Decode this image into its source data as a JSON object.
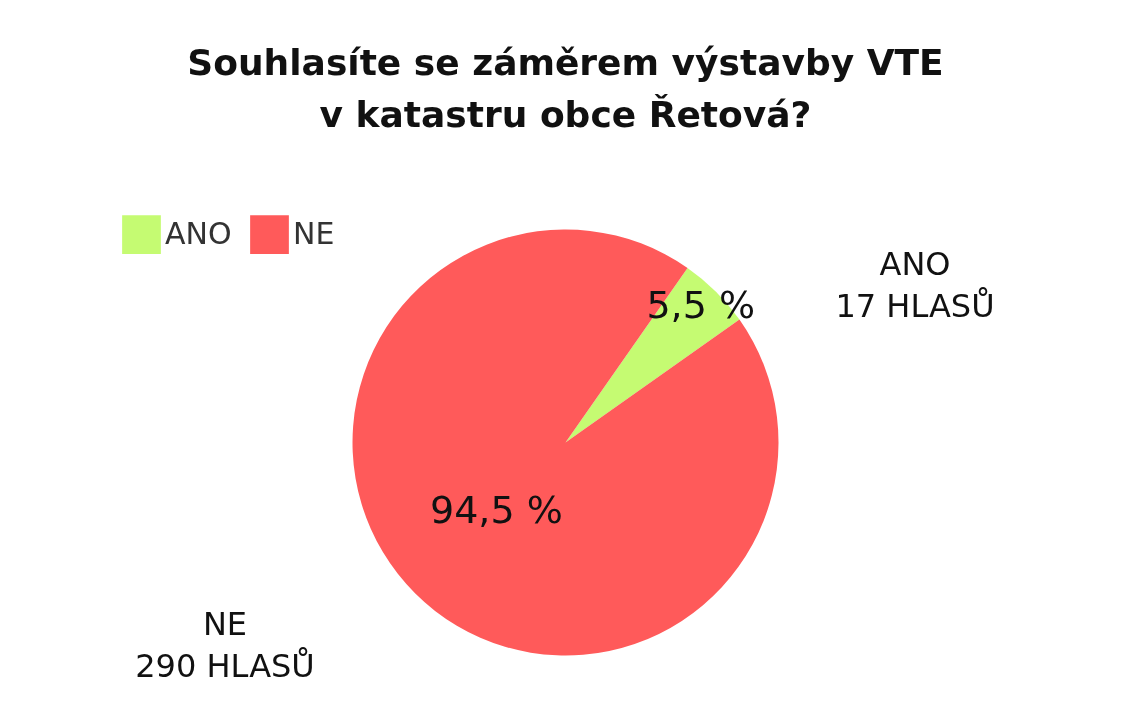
{
  "chart_data": {
    "type": "pie",
    "title": "Souhlasíte se záměrem výstavby VTE\nv katastru obce Řetová?",
    "categories": [
      "ANO",
      "NE"
    ],
    "values": [
      5.5,
      94.5
    ],
    "value_labels": [
      "5,5 %",
      "94,5 %"
    ],
    "colors": [
      "#c5fb72",
      "#ff5a5a"
    ],
    "legend": "top left",
    "annotations": [
      "ANO\n17 HLASŮ",
      "NE\n290 HLASŮ"
    ]
  }
}
